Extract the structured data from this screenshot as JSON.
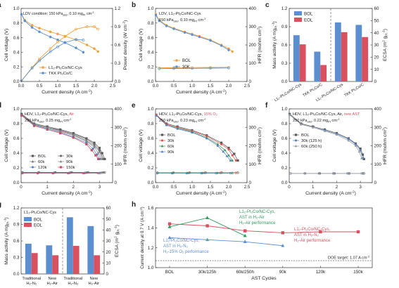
{
  "colors": {
    "orange": "#f0a040",
    "blue": "#5b8fd0",
    "red": "#d9505f",
    "green": "#2e9a5a",
    "gray": "#8c8c8c",
    "black": "#222222"
  },
  "chart_data": [
    {
      "id": "a",
      "type": "line",
      "panel_label": "a",
      "annotation": "LDV condition: 150 kPa",
      "annotation_sub": "abs",
      "annotation_tail": ", 0.10 mg",
      "annotation_sub2": "Pt",
      "annotation_tail2": " cm",
      "annotation_sup": "-2",
      "xlabel": "Current density (A cm",
      "xlabel_sup": "-2",
      "xlabel_tail": ")",
      "ylabel": "Cell voltage (V)",
      "y2label": "Power density (W cm",
      "y2label_sup": "-2",
      "y2label_tail": ")",
      "xlim": [
        0,
        2.5
      ],
      "ylim": [
        0,
        1.0
      ],
      "y2lim": [
        0,
        1.2
      ],
      "xticks": [
        "0.0",
        "0.5",
        "1.0",
        "1.5",
        "2.0",
        "2.5"
      ],
      "yticks": [
        "0.0",
        "0.2",
        "0.4",
        "0.6",
        "0.8",
        "1.0"
      ],
      "y2ticks": [
        "0.0",
        "0.3",
        "0.6",
        "0.9",
        "1.2"
      ],
      "series": [
        {
          "name": "L1₂-Pt₃Co/NC-Cys",
          "color": "orange",
          "x": [
            0.01,
            0.1,
            0.3,
            0.5,
            0.8,
            1.0,
            1.2,
            1.5,
            1.8,
            2.0,
            2.1
          ],
          "y": [
            0.92,
            0.84,
            0.77,
            0.73,
            0.68,
            0.65,
            0.62,
            0.57,
            0.5,
            0.45,
            0.41
          ]
        },
        {
          "name": "TKK Pt₃Co/C",
          "color": "blue",
          "x": [
            0.01,
            0.1,
            0.3,
            0.5,
            0.8,
            1.0,
            1.2,
            1.5,
            1.7
          ],
          "y": [
            0.92,
            0.83,
            0.74,
            0.68,
            0.61,
            0.57,
            0.53,
            0.46,
            0.4
          ]
        },
        {
          "name": "",
          "color": "orange",
          "axis": "y2",
          "x": [
            0.01,
            0.3,
            0.5,
            0.8,
            1.0,
            1.2,
            1.5,
            1.8,
            2.0,
            2.1
          ],
          "y": [
            0.01,
            0.23,
            0.37,
            0.54,
            0.65,
            0.74,
            0.86,
            0.9,
            0.9,
            0.86
          ]
        },
        {
          "name": "",
          "color": "blue",
          "axis": "y2",
          "x": [
            0.01,
            0.3,
            0.5,
            0.8,
            1.0,
            1.2,
            1.5,
            1.7
          ],
          "y": [
            0.01,
            0.22,
            0.34,
            0.49,
            0.57,
            0.64,
            0.69,
            0.68
          ]
        }
      ]
    },
    {
      "id": "b",
      "type": "line",
      "panel_label": "b",
      "annotation": "LDV, L1₂-Pt₃Co/NC-Cys",
      "annotation2": "150 kPa",
      "annotation2_sub": "abs",
      "annotation2_tail": ", 0.10 mg",
      "annotation2_sub2": "Pt",
      "annotation2_tail2": " cm",
      "annotation2_sup": "-2",
      "xlabel": "Current density (A cm",
      "xlabel_sup": "-2",
      "xlabel_tail": ")",
      "ylabel": "Cell voltage (V)",
      "y2label": "HFR (mohm cm",
      "y2label_sup": "2",
      "y2label_tail": ")",
      "xlim": [
        0,
        2.5
      ],
      "ylim": [
        0,
        1.0
      ],
      "y2lim": [
        0,
        400
      ],
      "xticks": [
        "0.0",
        "0.5",
        "1.0",
        "1.5",
        "2.0",
        "2.5"
      ],
      "yticks": [
        "0.0",
        "0.2",
        "0.4",
        "0.6",
        "0.8",
        "1.0"
      ],
      "y2ticks": [
        "0",
        "100",
        "200",
        "300",
        "400"
      ],
      "series": [
        {
          "name": "BOL",
          "color": "orange",
          "x": [
            0.01,
            0.1,
            0.3,
            0.5,
            0.8,
            1.0,
            1.2,
            1.5,
            1.8,
            2.0,
            2.1
          ],
          "y": [
            0.92,
            0.84,
            0.77,
            0.73,
            0.68,
            0.65,
            0.62,
            0.57,
            0.5,
            0.45,
            0.41
          ]
        },
        {
          "name": "30K",
          "color": "blue",
          "x": [
            0.01,
            0.1,
            0.3,
            0.5,
            0.8,
            1.0,
            1.2,
            1.5,
            1.8,
            2.0
          ],
          "y": [
            0.91,
            0.83,
            0.76,
            0.72,
            0.67,
            0.64,
            0.61,
            0.56,
            0.49,
            0.43
          ]
        },
        {
          "name": "",
          "color": "orange",
          "axis": "y2",
          "x": [
            0.1,
            0.5,
            1.0,
            1.5,
            2.0
          ],
          "y": [
            75,
            75,
            76,
            77,
            78
          ]
        },
        {
          "name": "",
          "color": "blue",
          "axis": "y2",
          "x": [
            0.1,
            0.5,
            1.0,
            1.5,
            2.0
          ],
          "y": [
            70,
            71,
            72,
            73,
            74
          ]
        }
      ]
    },
    {
      "id": "c",
      "type": "bar",
      "panel_label": "c",
      "ylabel": "Mass activity (A mg",
      "ylabel_sub": "Pt",
      "ylabel_sup": "-1",
      "ylabel_tail": ")",
      "y2label": "ECSA (m",
      "y2label_sup": "2",
      "y2label_tail": " g",
      "y2label_sub": "Pt",
      "y2label_sup2": "-1",
      "y2label_tail2": ")",
      "ylim": [
        0,
        1.2
      ],
      "y2lim": [
        0,
        60
      ],
      "yticks": [
        "0.0",
        "0.3",
        "0.6",
        "0.9",
        "1.2"
      ],
      "y2ticks": [
        "0",
        "10",
        "20",
        "30",
        "40",
        "50",
        "60"
      ],
      "categories": [
        "L1₂-Pt₃Co/NC-Cys",
        "TKK Pt₃Co/C",
        "L1₂-Pt₃Co/NC-Cys",
        "TKK Pt₃Co/C"
      ],
      "series": [
        {
          "name": "BOL",
          "color": "blue",
          "values": [
            0.76,
            0.49,
            0.97,
            0.93
          ]
        },
        {
          "name": "EOL",
          "color": "red",
          "values": [
            0.61,
            0.27,
            0.81,
            0.73
          ]
        }
      ]
    },
    {
      "id": "d",
      "type": "line",
      "panel_label": "d",
      "annotation": "HDV, L1₂-Pt₃Co/NC-Cys, ",
      "annotation_red": "Air",
      "annotation2": "250 kPa",
      "annotation2_sub": "abs",
      "annotation2_tail": ", 0.25 mg",
      "annotation2_sub2": "Pt",
      "annotation2_tail2": " cm",
      "annotation2_sup": "-2",
      "xlabel": "Current density (A cm",
      "xlabel_sup": "-2",
      "xlabel_tail": ")",
      "ylabel": "Cell voltage (V)",
      "y2label": "HFR (mohm cm",
      "y2label_sup": "2",
      "y2label_tail": ")",
      "xlim": [
        0,
        3.5
      ],
      "ylim": [
        0,
        1.0
      ],
      "y2lim": [
        0,
        400
      ],
      "xticks": [
        "0",
        "1",
        "2",
        "3"
      ],
      "yticks": [
        "0.0",
        "0.2",
        "0.4",
        "0.6",
        "0.8",
        "1.0"
      ],
      "y2ticks": [
        "0",
        "100",
        "200",
        "300",
        "400"
      ],
      "series": [
        {
          "name": "BOL",
          "x": [
            0.02,
            0.5,
            1.0,
            1.5,
            2.0,
            2.5,
            2.8,
            3.0,
            3.1,
            3.2
          ],
          "y": [
            0.93,
            0.8,
            0.76,
            0.72,
            0.67,
            0.6,
            0.54,
            0.47,
            0.4,
            0.32
          ]
        },
        {
          "name": "30k",
          "x": [
            0.02,
            0.5,
            1.0,
            1.5,
            2.0,
            2.5,
            2.8,
            3.0,
            3.15
          ],
          "y": [
            0.92,
            0.79,
            0.75,
            0.71,
            0.66,
            0.59,
            0.52,
            0.44,
            0.32
          ]
        },
        {
          "name": "60k",
          "x": [
            0.02,
            0.5,
            1.0,
            1.5,
            2.0,
            2.5,
            2.8,
            3.0,
            3.1
          ],
          "y": [
            0.92,
            0.79,
            0.75,
            0.7,
            0.65,
            0.57,
            0.5,
            0.42,
            0.32
          ]
        },
        {
          "name": "90k",
          "x": [
            0.02,
            0.5,
            1.0,
            1.5,
            2.0,
            2.5,
            2.8,
            2.95,
            3.05
          ],
          "y": [
            0.92,
            0.78,
            0.74,
            0.69,
            0.64,
            0.56,
            0.48,
            0.4,
            0.32
          ]
        },
        {
          "name": "120k",
          "x": [
            0.02,
            0.5,
            1.0,
            1.5,
            2.0,
            2.5,
            2.75,
            2.9,
            3.0
          ],
          "y": [
            0.91,
            0.78,
            0.73,
            0.68,
            0.62,
            0.54,
            0.46,
            0.38,
            0.32
          ]
        },
        {
          "name": "150k",
          "x": [
            0.02,
            0.5,
            1.0,
            1.5,
            2.0,
            2.5,
            2.7,
            2.85,
            2.95
          ],
          "y": [
            0.91,
            0.77,
            0.72,
            0.67,
            0.61,
            0.52,
            0.44,
            0.37,
            0.32
          ]
        }
      ],
      "hfr": [
        56,
        55,
        54,
        53,
        52,
        51
      ]
    },
    {
      "id": "e",
      "type": "line",
      "panel_label": "e",
      "annotation": "HDV, L1₂-Pt₃Co/NC-Cys, ",
      "annotation_red": "15% O₂",
      "annotation2": "250 kPa",
      "annotation2_sub": "abs",
      "annotation2_tail": ", 0.23 mg",
      "annotation2_sub2": "Pt",
      "annotation2_tail2": " cm",
      "annotation2_sup": "-2",
      "xlabel": "Current density (A cm",
      "xlabel_sup": "-2",
      "xlabel_tail": ")",
      "ylabel": "Cell voltage (V)",
      "y2label": "HFR (mohm cm",
      "y2label_sup": "2",
      "y2label_tail": ")",
      "xlim": [
        0,
        2.5
      ],
      "ylim": [
        0,
        1.0
      ],
      "y2lim": [
        0,
        400
      ],
      "xticks": [
        "0.0",
        "0.5",
        "1.0",
        "1.5",
        "2.0",
        "2.5"
      ],
      "yticks": [
        "0.0",
        "0.2",
        "0.4",
        "0.6",
        "0.8",
        "1.0"
      ],
      "y2ticks": [
        "0",
        "100",
        "200",
        "300",
        "400"
      ],
      "series": [
        {
          "name": "BOL",
          "x": [
            0.02,
            0.3,
            0.6,
            1.0,
            1.4,
            1.8,
            2.0,
            2.15,
            2.25
          ],
          "y": [
            0.92,
            0.8,
            0.76,
            0.71,
            0.64,
            0.54,
            0.47,
            0.39,
            0.3
          ]
        },
        {
          "name": "30k",
          "x": [
            0.02,
            0.3,
            0.6,
            1.0,
            1.4,
            1.8,
            2.0,
            2.1,
            2.2
          ],
          "y": [
            0.92,
            0.79,
            0.75,
            0.7,
            0.63,
            0.52,
            0.45,
            0.37,
            0.3
          ]
        },
        {
          "name": "60k",
          "x": [
            0.02,
            0.3,
            0.6,
            1.0,
            1.4,
            1.7,
            1.9,
            2.0,
            2.1
          ],
          "y": [
            0.91,
            0.78,
            0.74,
            0.69,
            0.61,
            0.52,
            0.44,
            0.37,
            0.3
          ]
        },
        {
          "name": "90k",
          "x": [
            0.02,
            0.3,
            0.6,
            1.0,
            1.4,
            1.7,
            1.85,
            1.95,
            2.05
          ],
          "y": [
            0.91,
            0.78,
            0.73,
            0.68,
            0.6,
            0.5,
            0.42,
            0.36,
            0.3
          ]
        }
      ],
      "hfr": [
        54,
        53,
        52,
        51
      ]
    },
    {
      "id": "f",
      "type": "line",
      "panel_label": "f",
      "annotation": "HDV, L1₂-Pt₃Co/NC-Cys, Air, ",
      "annotation_red": "new AST",
      "annotation2": "250 kPa",
      "annotation2_sub": "abs",
      "annotation2_tail": ", 0.22 mg",
      "annotation2_sub2": "Pt",
      "annotation2_tail2": " cm",
      "annotation2_sup": "-2",
      "xlabel": "Current density (A cm",
      "xlabel_sup": "-2",
      "xlabel_tail": ")",
      "ylabel": "Cell voltage (V)",
      "y2label": "HFR (mohm cm",
      "y2label_sup": "2",
      "y2label_tail": ")",
      "xlim": [
        0,
        3.5
      ],
      "ylim": [
        0,
        1.0
      ],
      "y2lim": [
        0,
        400
      ],
      "xticks": [
        "0",
        "1",
        "2",
        "3"
      ],
      "yticks": [
        "0.0",
        "0.2",
        "0.4",
        "0.6",
        "0.8",
        "1.0"
      ],
      "y2ticks": [
        "0",
        "100",
        "200",
        "300",
        "400"
      ],
      "series": [
        {
          "name": "BOL",
          "x": [
            0.02,
            0.5,
            1.0,
            1.5,
            2.0,
            2.5,
            2.8,
            3.0,
            3.1,
            3.15
          ],
          "y": [
            0.93,
            0.8,
            0.76,
            0.72,
            0.67,
            0.6,
            0.53,
            0.46,
            0.38,
            0.32
          ]
        },
        {
          "name": "30k (125 h)",
          "x": [
            0.02,
            0.5,
            1.0,
            1.5,
            2.0,
            2.5,
            2.8,
            3.0,
            3.1
          ],
          "y": [
            0.92,
            0.79,
            0.75,
            0.71,
            0.66,
            0.59,
            0.52,
            0.44,
            0.33
          ]
        },
        {
          "name": "60k (250 h)",
          "x": [
            0.02,
            0.5,
            1.0,
            1.5,
            2.0,
            2.5,
            2.8,
            2.95,
            3.05
          ],
          "y": [
            0.92,
            0.79,
            0.75,
            0.7,
            0.65,
            0.57,
            0.5,
            0.42,
            0.33
          ]
        }
      ],
      "hfr": [
        50,
        50,
        50
      ]
    },
    {
      "id": "g",
      "type": "bar",
      "panel_label": "g",
      "annotation": "L1₂-Pt₃Co/NC-Cys",
      "ylabel": "Mass activity (A mg",
      "ylabel_sub": "Pt",
      "ylabel_sup": "-1",
      "ylabel_tail": ")",
      "y2label": "ECSA (m",
      "y2label_sup": "2",
      "y2label_tail": " g",
      "y2label_sub": "Pt",
      "y2label_sup2": "-1",
      "y2label_tail2": ")",
      "ylim": [
        0,
        1.2
      ],
      "y2lim": [
        0,
        60
      ],
      "yticks": [
        "0.0",
        "0.3",
        "0.6",
        "0.9",
        "1.2"
      ],
      "y2ticks": [
        "0",
        "10",
        "20",
        "30",
        "40",
        "50",
        "60"
      ],
      "categories": [
        [
          "Traditional",
          "H₂-N₂"
        ],
        [
          "New",
          "H₂-Air"
        ],
        [
          "Traditional",
          "H₂-N₂"
        ],
        [
          "New",
          "H₂-Air"
        ]
      ],
      "series": [
        {
          "name": "BOL",
          "color": "blue",
          "values": [
            0.55,
            0.52,
            1.03,
            0.87
          ]
        },
        {
          "name": "EOL",
          "color": "red",
          "values": [
            0.38,
            0.34,
            0.51,
            0.34
          ]
        }
      ]
    },
    {
      "id": "h",
      "type": "line",
      "panel_label": "h",
      "ylabel": "Current density at 0.7 V (A cm",
      "ylabel_sup": "-2",
      "ylabel_tail": ")",
      "xlabel": "AST Cycles",
      "ylim": [
        1.0,
        1.6
      ],
      "yticks": [
        "1.0",
        "1.2",
        "1.4",
        "1.6"
      ],
      "categories": [
        "BOL",
        "30k/125h",
        "60k/250h",
        "90k",
        "120k",
        "150k"
      ],
      "doe_target": 1.07,
      "doe_label": "DOE target: 1.07 A cm",
      "doe_label_sup": "-2",
      "series": [
        {
          "name_lines": [
            "L1₂-Pt₃Co/NC-Cys,",
            "AST in H₂-Air",
            "H₂-Air performance"
          ],
          "color": "green",
          "x": [
            0,
            1,
            2
          ],
          "y": [
            1.41,
            1.5,
            1.32
          ]
        },
        {
          "name_lines": [
            "L1₂-Pt₃Co/NC-Cys,",
            "AST in H₂-N₂",
            "H₂-Air performance"
          ],
          "color": "red",
          "x": [
            0,
            1,
            2,
            3,
            4,
            5
          ],
          "y": [
            1.44,
            1.42,
            1.37,
            1.35,
            1.36,
            1.36
          ]
        },
        {
          "name_lines": [
            "L1₂-Pt₃Co/NC-Cys,",
            "AST in H₂-N₂",
            "H₂-15% O₂ performance"
          ],
          "color": "blue",
          "x": [
            0,
            1,
            2,
            3
          ],
          "y": [
            1.3,
            1.28,
            1.26,
            1.22
          ]
        }
      ]
    }
  ]
}
